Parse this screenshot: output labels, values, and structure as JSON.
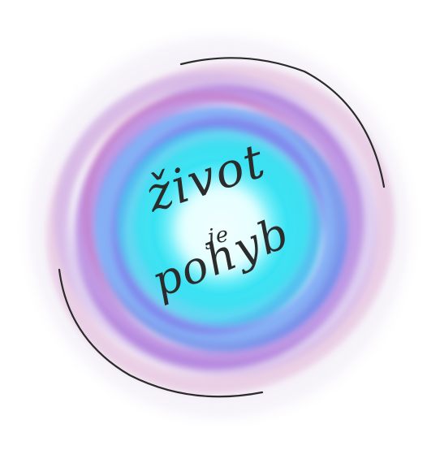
{
  "slogan": {
    "line1": "život",
    "line2": "je",
    "line3": "pohyb"
  },
  "colors": {
    "background": "#ffffff",
    "core": "#d9ffff",
    "cyan": "#2fe3f0",
    "blue": "#4a8cf2",
    "purple": "#9c5ed6",
    "pink": "#d98bc4",
    "arc": "#2b2b2b",
    "text": "#2b2b2b"
  },
  "icons": {
    "swirl": "swirl-ring-icon",
    "arcs": "orbit-arc-icon"
  }
}
